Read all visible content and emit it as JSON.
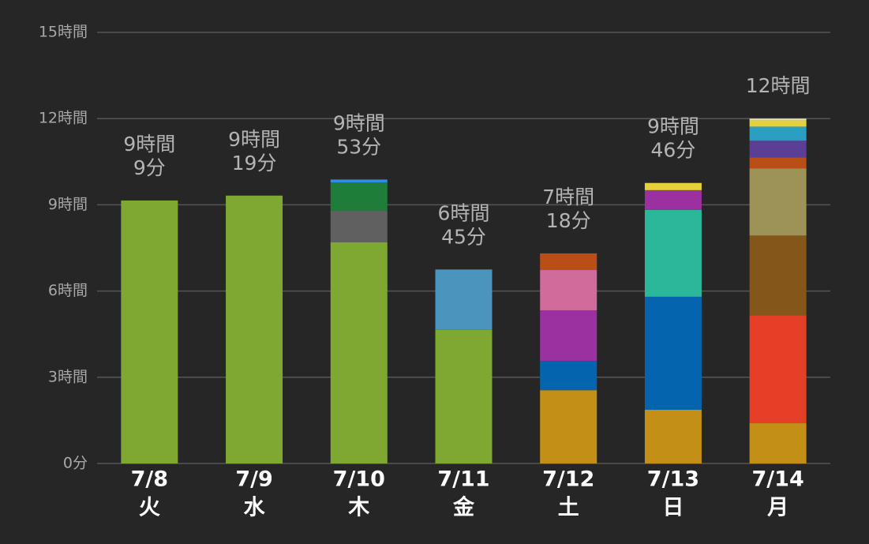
{
  "chart_data": {
    "type": "stacked_bar",
    "categories": [
      [
        "7/8",
        "火"
      ],
      [
        "7/9",
        "水"
      ],
      [
        "7/10",
        "木"
      ],
      [
        "7/11",
        "金"
      ],
      [
        "7/12",
        "土"
      ],
      [
        "7/13",
        "日"
      ],
      [
        "7/14",
        "月"
      ]
    ],
    "total_labels": [
      [
        "9時間",
        "9分"
      ],
      [
        "9時間",
        "19分"
      ],
      [
        "9時間",
        "53分"
      ],
      [
        "6時間",
        "45分"
      ],
      [
        "7時間",
        "18分"
      ],
      [
        "9時間",
        "46分"
      ],
      [
        "12時間"
      ]
    ],
    "ylim": [
      0,
      15
    ],
    "yticks": [
      {
        "value": 0,
        "label": "0分"
      },
      {
        "value": 3,
        "label": "3時間"
      },
      {
        "value": 6,
        "label": "6時間"
      },
      {
        "value": 9,
        "label": "9時間"
      },
      {
        "value": 12,
        "label": "12時間"
      },
      {
        "value": 15,
        "label": "15時間"
      }
    ],
    "grid": true,
    "series": [
      {
        "color": "#7ea832",
        "values": [
          9.15,
          9.32,
          7.7,
          4.65,
          null,
          null,
          null
        ]
      },
      {
        "color": "#c38f17",
        "values": [
          null,
          null,
          null,
          null,
          2.55,
          1.87,
          1.4
        ]
      },
      {
        "color": "#606060",
        "values": [
          null,
          null,
          1.1,
          null,
          null,
          null,
          null
        ]
      },
      {
        "color": "#1f7d3a",
        "values": [
          null,
          null,
          0.98,
          null,
          null,
          null,
          null
        ]
      },
      {
        "color": "#2e8de0",
        "values": [
          null,
          null,
          0.1,
          null,
          null,
          null,
          null
        ]
      },
      {
        "color": "#4a95bd",
        "values": [
          null,
          null,
          null,
          2.1,
          null,
          null,
          null
        ]
      },
      {
        "color": "#0465ae",
        "values": [
          null,
          null,
          null,
          null,
          1.02,
          3.93,
          null
        ]
      },
      {
        "color": "#e54027",
        "values": [
          null,
          null,
          null,
          null,
          null,
          null,
          3.76
        ]
      },
      {
        "color": "#2bb89a",
        "values": [
          null,
          null,
          null,
          null,
          null,
          3.02,
          null
        ]
      },
      {
        "color": "#9b31a0",
        "values": [
          null,
          null,
          null,
          null,
          1.76,
          0.69,
          null
        ]
      },
      {
        "color": "#d06b9b",
        "values": [
          null,
          null,
          null,
          null,
          1.4,
          null,
          null
        ]
      },
      {
        "color": "#84561a",
        "values": [
          null,
          null,
          null,
          null,
          null,
          null,
          2.77
        ]
      },
      {
        "color": "#9e9356",
        "values": [
          null,
          null,
          null,
          null,
          null,
          null,
          2.34
        ]
      },
      {
        "color": "#b94f16",
        "values": [
          null,
          null,
          null,
          null,
          0.58,
          null,
          0.38
        ]
      },
      {
        "color": "#5b3f97",
        "values": [
          null,
          null,
          null,
          null,
          null,
          null,
          0.58
        ]
      },
      {
        "color": "#2b9fc2",
        "values": [
          null,
          null,
          null,
          null,
          null,
          null,
          0.49
        ]
      },
      {
        "color": "#e5d23a",
        "values": [
          null,
          null,
          null,
          null,
          null,
          0.25,
          0.22
        ]
      },
      {
        "color": "#e0e0c0",
        "values": [
          null,
          null,
          null,
          null,
          null,
          null,
          0.06
        ]
      }
    ]
  }
}
